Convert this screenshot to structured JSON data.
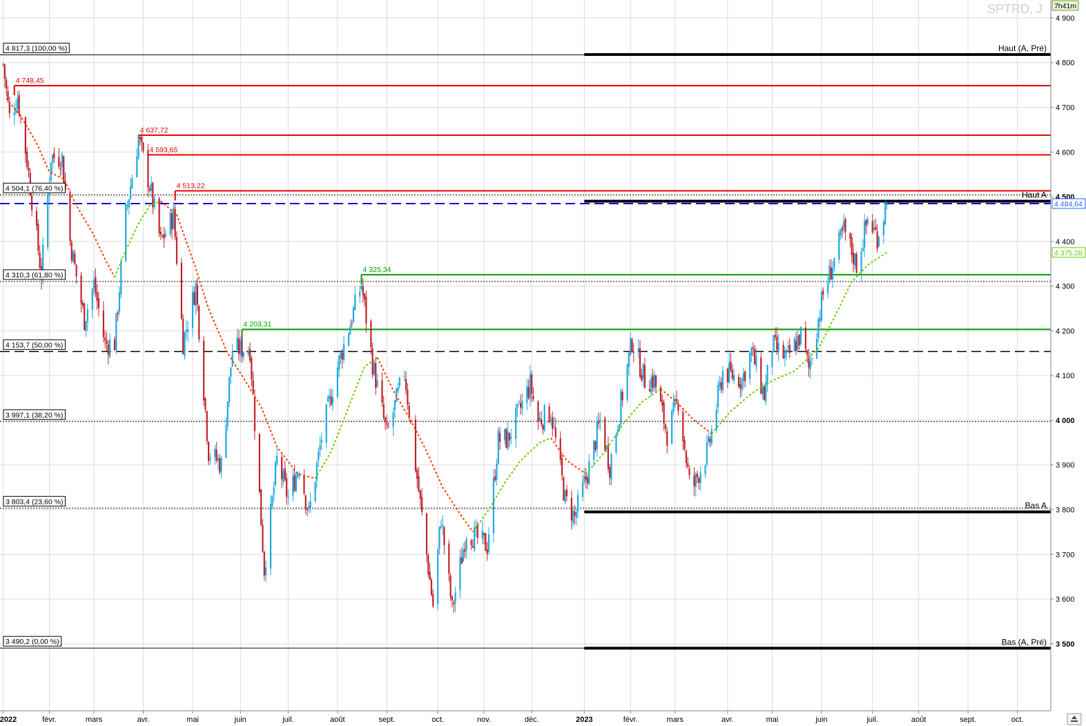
{
  "chart_data": {
    "type": "candlestick",
    "symbol_label": "SPTRD, J",
    "timer_label": "7h41m",
    "y_range": [
      3350,
      4940
    ],
    "y_ticks": [
      {
        "v": 4900,
        "t": "4 900",
        "bold": false
      },
      {
        "v": 4800,
        "t": "4 800",
        "bold": false
      },
      {
        "v": 4700,
        "t": "4 700",
        "bold": false
      },
      {
        "v": 4600,
        "t": "4 600",
        "bold": false
      },
      {
        "v": 4500,
        "t": "4 500",
        "bold": true
      },
      {
        "v": 4400,
        "t": "4 400",
        "bold": false
      },
      {
        "v": 4300,
        "t": "4 300",
        "bold": false
      },
      {
        "v": 4200,
        "t": "4 200",
        "bold": false
      },
      {
        "v": 4100,
        "t": "4 100",
        "bold": false
      },
      {
        "v": 4000,
        "t": "4 000",
        "bold": true
      },
      {
        "v": 3900,
        "t": "3 900",
        "bold": false
      },
      {
        "v": 3800,
        "t": "3 800",
        "bold": false
      },
      {
        "v": 3700,
        "t": "3 700",
        "bold": false
      },
      {
        "v": 3600,
        "t": "3 600",
        "bold": false
      },
      {
        "v": 3500,
        "t": "3 500",
        "bold": true
      }
    ],
    "x_ticks": [
      {
        "d": "2022-01-03",
        "t": "2022",
        "bold": true
      },
      {
        "d": "2022-02-01",
        "t": "févr.",
        "bold": false
      },
      {
        "d": "2022-03-01",
        "t": "mars",
        "bold": false
      },
      {
        "d": "2022-04-01",
        "t": "avr.",
        "bold": false
      },
      {
        "d": "2022-05-02",
        "t": "mai",
        "bold": false
      },
      {
        "d": "2022-06-01",
        "t": "juin",
        "bold": false
      },
      {
        "d": "2022-07-01",
        "t": "juil.",
        "bold": false
      },
      {
        "d": "2022-08-01",
        "t": "août",
        "bold": false
      },
      {
        "d": "2022-09-01",
        "t": "sept.",
        "bold": false
      },
      {
        "d": "2022-10-03",
        "t": "oct.",
        "bold": false
      },
      {
        "d": "2022-11-01",
        "t": "nov.",
        "bold": false
      },
      {
        "d": "2022-12-01",
        "t": "déc.",
        "bold": false
      },
      {
        "d": "2023-01-03",
        "t": "2023",
        "bold": true
      },
      {
        "d": "2023-02-01",
        "t": "févr.",
        "bold": false
      },
      {
        "d": "2023-03-01",
        "t": "mars",
        "bold": false
      },
      {
        "d": "2023-04-03",
        "t": "avr.",
        "bold": false
      },
      {
        "d": "2023-05-01",
        "t": "mai",
        "bold": false
      },
      {
        "d": "2023-06-01",
        "t": "juin",
        "bold": false
      },
      {
        "d": "2023-07-03",
        "t": "juil.",
        "bold": false
      },
      {
        "d": "2023-08-01",
        "t": "août",
        "bold": false
      },
      {
        "d": "2023-09-01",
        "t": "sept.",
        "bold": false
      },
      {
        "d": "2023-10-02",
        "t": "oct.",
        "bold": false
      }
    ],
    "x_range": [
      "2022-01-01",
      "2023-10-23"
    ],
    "price_path": [
      [
        "2022-01-03",
        4796
      ],
      [
        "2022-01-07",
        4677
      ],
      [
        "2022-01-12",
        4726
      ],
      [
        "2022-01-18",
        4580
      ],
      [
        "2022-01-24",
        4410
      ],
      [
        "2022-01-27",
        4326
      ],
      [
        "2022-02-02",
        4589
      ],
      [
        "2022-02-09",
        4587
      ],
      [
        "2022-02-14",
        4401
      ],
      [
        "2022-02-23",
        4225
      ],
      [
        "2022-03-01",
        4306
      ],
      [
        "2022-03-08",
        4170
      ],
      [
        "2022-03-14",
        4173
      ],
      [
        "2022-03-21",
        4461
      ],
      [
        "2022-03-29",
        4631
      ],
      [
        "2022-04-05",
        4525
      ],
      [
        "2022-04-12",
        4397
      ],
      [
        "2022-04-20",
        4459
      ],
      [
        "2022-04-26",
        4175
      ],
      [
        "2022-05-04",
        4300
      ],
      [
        "2022-05-12",
        3930
      ],
      [
        "2022-05-20",
        3901
      ],
      [
        "2022-05-27",
        4158
      ],
      [
        "2022-06-07",
        4161
      ],
      [
        "2022-06-16",
        3666
      ],
      [
        "2022-06-24",
        3911
      ],
      [
        "2022-07-01",
        3825
      ],
      [
        "2022-07-08",
        3899
      ],
      [
        "2022-07-14",
        3790
      ],
      [
        "2022-07-22",
        3962
      ],
      [
        "2022-08-01",
        4119
      ],
      [
        "2022-08-16",
        4305
      ],
      [
        "2022-08-23",
        4128
      ],
      [
        "2022-09-01",
        3966
      ],
      [
        "2022-09-12",
        4110
      ],
      [
        "2022-09-19",
        3899
      ],
      [
        "2022-09-30",
        3585
      ],
      [
        "2022-10-05",
        3783
      ],
      [
        "2022-10-12",
        3577
      ],
      [
        "2022-10-21",
        3752
      ],
      [
        "2022-11-03",
        3719
      ],
      [
        "2022-11-10",
        3956
      ],
      [
        "2022-11-16",
        3958
      ],
      [
        "2022-11-30",
        4080
      ],
      [
        "2022-12-05",
        3998
      ],
      [
        "2022-12-13",
        4019
      ],
      [
        "2022-12-22",
        3822
      ],
      [
        "2022-12-28",
        3783
      ],
      [
        "2023-01-06",
        3895
      ],
      [
        "2023-01-13",
        3999
      ],
      [
        "2023-01-19",
        3898
      ],
      [
        "2023-02-02",
        4179
      ],
      [
        "2023-02-10",
        4090
      ],
      [
        "2023-02-16",
        4090
      ],
      [
        "2023-02-24",
        3970
      ],
      [
        "2023-03-03",
        4045
      ],
      [
        "2023-03-10",
        3861
      ],
      [
        "2023-03-13",
        3855
      ],
      [
        "2023-03-22",
        3937
      ],
      [
        "2023-03-31",
        4109
      ],
      [
        "2023-04-12",
        4091
      ],
      [
        "2023-04-18",
        4154
      ],
      [
        "2023-04-26",
        4055
      ],
      [
        "2023-05-01",
        4168
      ],
      [
        "2023-05-10",
        4137
      ],
      [
        "2023-05-19",
        4191
      ],
      [
        "2023-05-24",
        4115
      ],
      [
        "2023-06-02",
        4282
      ],
      [
        "2023-06-15",
        4425
      ],
      [
        "2023-06-23",
        4348
      ],
      [
        "2023-06-30",
        4450
      ],
      [
        "2023-07-06",
        4411
      ],
      [
        "2023-07-12",
        4485
      ]
    ],
    "moving_averages": [
      {
        "name": "",
        "color": "#ff3b00",
        "points": [
          [
            "2022-01-05",
            4720
          ],
          [
            "2022-01-14",
            4680
          ],
          [
            "2022-01-24",
            4620
          ],
          [
            "2022-02-01",
            4555
          ],
          [
            "2022-02-10",
            4540
          ],
          [
            "2022-02-18",
            4480
          ],
          [
            "2022-02-28",
            4420
          ],
          [
            "2022-03-08",
            4360
          ],
          [
            "2022-03-14",
            4320
          ]
        ]
      },
      {
        "name": "",
        "color": "#66cc00",
        "points": [
          [
            "2022-03-14",
            4320
          ],
          [
            "2022-03-21",
            4380
          ],
          [
            "2022-03-29",
            4440
          ],
          [
            "2022-04-05",
            4480
          ],
          [
            "2022-04-12",
            4490
          ]
        ]
      },
      {
        "name": "",
        "color": "#ff3b00",
        "points": [
          [
            "2022-04-12",
            4490
          ],
          [
            "2022-04-22",
            4460
          ],
          [
            "2022-05-03",
            4350
          ],
          [
            "2022-05-12",
            4250
          ],
          [
            "2022-05-24",
            4150
          ],
          [
            "2022-06-02",
            4100
          ],
          [
            "2022-06-14",
            4030
          ],
          [
            "2022-06-24",
            3940
          ],
          [
            "2022-07-07",
            3880
          ],
          [
            "2022-07-18",
            3870
          ]
        ]
      },
      {
        "name": "",
        "color": "#66cc00",
        "points": [
          [
            "2022-07-18",
            3870
          ],
          [
            "2022-07-28",
            3930
          ],
          [
            "2022-08-08",
            4030
          ],
          [
            "2022-08-18",
            4120
          ],
          [
            "2022-08-26",
            4140
          ]
        ]
      },
      {
        "name": "",
        "color": "#ff3b00",
        "points": [
          [
            "2022-08-26",
            4140
          ],
          [
            "2022-09-06",
            4060
          ],
          [
            "2022-09-16",
            4000
          ],
          [
            "2022-09-26",
            3930
          ],
          [
            "2022-10-06",
            3850
          ],
          [
            "2022-10-17",
            3790
          ],
          [
            "2022-10-25",
            3750
          ]
        ]
      },
      {
        "name": "",
        "color": "#66cc00",
        "points": [
          [
            "2022-10-25",
            3750
          ],
          [
            "2022-11-04",
            3800
          ],
          [
            "2022-11-14",
            3860
          ],
          [
            "2022-11-24",
            3910
          ],
          [
            "2022-12-06",
            3950
          ],
          [
            "2022-12-13",
            3960
          ]
        ]
      },
      {
        "name": "",
        "color": "#ff3b00",
        "points": [
          [
            "2022-12-13",
            3960
          ],
          [
            "2022-12-23",
            3910
          ],
          [
            "2023-01-04",
            3880
          ]
        ]
      },
      {
        "name": "",
        "color": "#66cc00",
        "points": [
          [
            "2023-01-04",
            3880
          ],
          [
            "2023-01-16",
            3930
          ],
          [
            "2023-01-27",
            3990
          ],
          [
            "2023-02-08",
            4040
          ],
          [
            "2023-02-20",
            4070
          ]
        ]
      },
      {
        "name": "",
        "color": "#ff3b00",
        "points": [
          [
            "2023-02-20",
            4070
          ],
          [
            "2023-03-02",
            4040
          ],
          [
            "2023-03-13",
            4000
          ],
          [
            "2023-03-24",
            3970
          ]
        ]
      },
      {
        "name": "",
        "color": "#66cc00",
        "points": [
          [
            "2023-03-24",
            3970
          ],
          [
            "2023-04-05",
            4020
          ],
          [
            "2023-04-18",
            4060
          ],
          [
            "2023-05-02",
            4090
          ],
          [
            "2023-05-15",
            4110
          ],
          [
            "2023-05-30",
            4160
          ],
          [
            "2023-06-09",
            4230
          ],
          [
            "2023-06-20",
            4310
          ],
          [
            "2023-07-01",
            4350
          ],
          [
            "2023-07-12",
            4375
          ]
        ]
      }
    ],
    "levels": [
      {
        "v": 4817.3,
        "style": "solid-thin",
        "color": "#000000",
        "start": "2022-01-01",
        "label": "4 817,3 (100,00 %)",
        "side": "left"
      },
      {
        "v": 4504.1,
        "style": "dotted",
        "color": "#000000",
        "start": "2022-01-01",
        "label": "4 504,1 (76,40 %)",
        "side": "left"
      },
      {
        "v": 4310.3,
        "style": "dotted",
        "color": "#000000",
        "start": "2022-01-01",
        "label": "4 310,3 (61,80 %)",
        "side": "left"
      },
      {
        "v": 4153.7,
        "style": "dashed",
        "color": "#000000",
        "start": "2022-01-01",
        "label": "4 153,7 (50,00 %)",
        "side": "left"
      },
      {
        "v": 3997.1,
        "style": "dotted",
        "color": "#000000",
        "start": "2022-01-01",
        "label": "3 997,1 (38,20 %)",
        "side": "left"
      },
      {
        "v": 3803.4,
        "style": "dotted",
        "color": "#000000",
        "start": "2022-01-01",
        "label": "3 803,4 (23,60 %)",
        "side": "left"
      },
      {
        "v": 3490.2,
        "style": "solid-thin",
        "color": "#000000",
        "start": "2022-01-01",
        "label": "3 490,2 (0,00 %)",
        "side": "left"
      },
      {
        "v": 4748.45,
        "style": "solid",
        "color": "#e00000",
        "start": "2022-01-10",
        "label": "4 748,45",
        "side": "mark"
      },
      {
        "v": 4637.72,
        "style": "solid",
        "color": "#e00000",
        "start": "2022-03-29",
        "label": "4 637,72",
        "side": "mark"
      },
      {
        "v": 4593.65,
        "style": "solid",
        "color": "#e00000",
        "start": "2022-04-04",
        "label": "4 593,65",
        "side": "mark"
      },
      {
        "v": 4513.22,
        "style": "solid",
        "color": "#e00000",
        "start": "2022-04-21",
        "label": "4 513,22",
        "side": "mark"
      },
      {
        "v": 4325.34,
        "style": "solid",
        "color": "#00a000",
        "start": "2022-08-16",
        "label": "4 325,34",
        "side": "mark"
      },
      {
        "v": 4203.31,
        "style": "solid",
        "color": "#00a000",
        "start": "2022-06-02",
        "label": "4 203,31",
        "side": "mark"
      },
      {
        "v": 4818.0,
        "style": "thick",
        "color": "#000000",
        "start": "2023-01-03",
        "label": "Haut (A, Pré)",
        "side": "right"
      },
      {
        "v": 4490.0,
        "style": "thick",
        "color": "#000000",
        "start": "2023-01-03",
        "label": "Haut A",
        "side": "right"
      },
      {
        "v": 3795.0,
        "style": "thick",
        "color": "#000000",
        "start": "2023-01-03",
        "label": "Bas A",
        "side": "right"
      },
      {
        "v": 3490.0,
        "style": "thick",
        "color": "#000000",
        "start": "2023-01-03",
        "label": "Bas (A, Pré)",
        "side": "right"
      },
      {
        "v": 4484.64,
        "style": "blue-dashed",
        "color": "#0000e0",
        "start": "2022-01-01",
        "label": "",
        "side": "none"
      }
    ],
    "price_tags": [
      {
        "v": 4484.64,
        "t": "4 484,64",
        "color": "#2060ff"
      },
      {
        "v": 4375.28,
        "t": "4 375,28",
        "color": "#66cc00"
      }
    ],
    "colors": {
      "up": "#1ea8e0",
      "down": "#c0202a",
      "bg": "#ffffff",
      "grid": "#dcdcdc"
    }
  }
}
